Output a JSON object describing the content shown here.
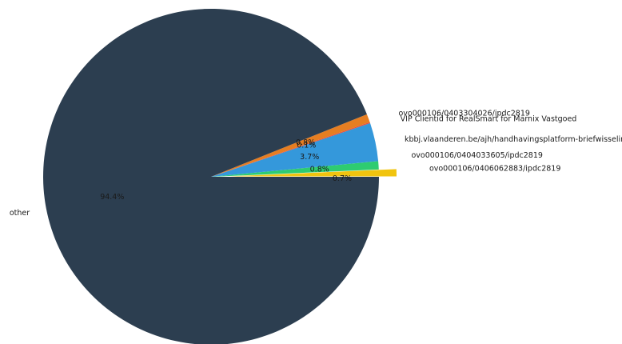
{
  "chart_data": {
    "type": "pie",
    "title": "",
    "start_angle_deg": 0,
    "direction": "counterclockwise",
    "slices": [
      {
        "label": "ovo000106/0406062883/ipdc2819",
        "value": 0.7,
        "pct_label": "0.7%",
        "color": "#f1c40f",
        "exploded": true
      },
      {
        "label": "ovo000106/0404033605/ipdc2819",
        "value": 0.8,
        "pct_label": "0.8%",
        "color": "#2ecc71",
        "exploded": false
      },
      {
        "label": "kbbj.vlaanderen.be/ajh/handhavingsplatform-briefwisseling",
        "value": 3.7,
        "pct_label": "3.7%",
        "color": "#3498db",
        "exploded": false
      },
      {
        "label": "VIP Clientid for RealSmart for Marnix Vastgoed",
        "value": 0.1,
        "pct_label": "0.1%",
        "color": "#e74c3c",
        "exploded": false
      },
      {
        "label": "ovo000106/0403304026/ipdc2819",
        "value": 0.8,
        "pct_label": "0.8%",
        "color": "#e67e22",
        "exploded": false
      },
      {
        "label": "other",
        "value": 94.4,
        "pct_label": "94.4%",
        "color": "#2c3e50",
        "exploded": false
      }
    ]
  }
}
